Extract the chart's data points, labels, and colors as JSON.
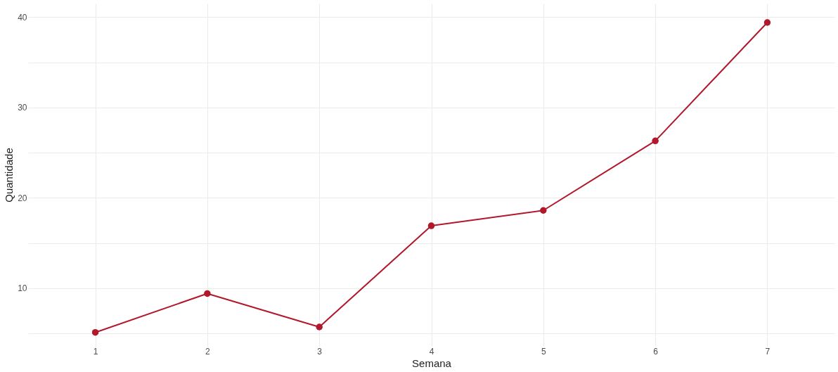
{
  "chart_data": {
    "type": "line",
    "xlabel": "Semana",
    "ylabel": "Quantidade",
    "x": [
      1,
      2,
      3,
      4,
      5,
      6,
      7
    ],
    "series": [
      {
        "color": "#b2182b",
        "values": [
          5.1,
          9.4,
          5.7,
          16.9,
          18.6,
          26.3,
          39.4
        ]
      }
    ],
    "xlim": [
      0.4,
      7.6
    ],
    "xticks": [
      1,
      2,
      3,
      4,
      5,
      6,
      7
    ],
    "ylim": [
      3.6,
      41.5
    ],
    "yticks": [
      {
        "value": 5,
        "label": null
      },
      10,
      {
        "value": 15,
        "label": null
      },
      20,
      {
        "value": 25,
        "label": null
      },
      30,
      {
        "value": 35,
        "label": null
      },
      40
    ],
    "grid": true,
    "marker": "circle",
    "line_style": "solid"
  }
}
